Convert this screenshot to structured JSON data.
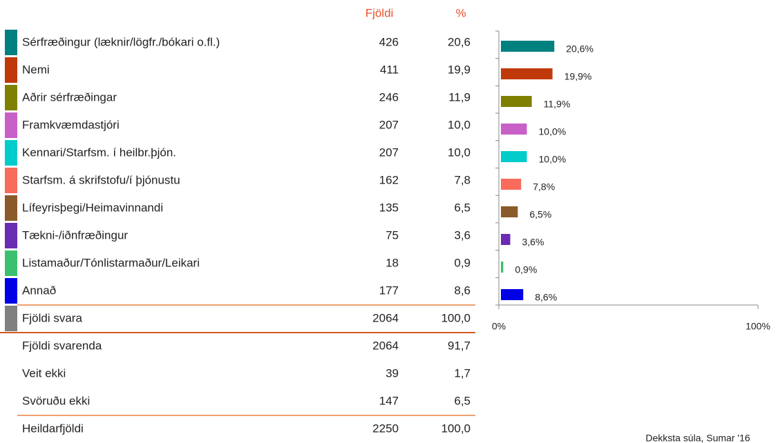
{
  "header": {
    "count": "Fjöldi",
    "percent": "%"
  },
  "table": {
    "rows": [
      {
        "label": "Sérfræðingur (læknir/lögfr./bókari o.fl.)",
        "count": 426,
        "percent": "20,6"
      },
      {
        "label": "Nemi",
        "count": 411,
        "percent": "19,9"
      },
      {
        "label": "Aðrir sérfræðingar",
        "count": 246,
        "percent": "11,9"
      },
      {
        "label": "Framkvæmdastjóri",
        "count": 207,
        "percent": "10,0"
      },
      {
        "label": "Kennari/Starfsm. í heilbr.þjón.",
        "count": 207,
        "percent": "10,0"
      },
      {
        "label": "Starfsm. á skrifstofu/í þjónustu",
        "count": 162,
        "percent": "7,8"
      },
      {
        "label": "Lífeyrisþegi/Heimavinnandi",
        "count": 135,
        "percent": "6,5"
      },
      {
        "label": "Tækni-/iðnfræðingur",
        "count": 75,
        "percent": "3,6"
      },
      {
        "label": "Listamaður/Tónlistarmaður/Leikari",
        "count": 18,
        "percent": "0,9"
      },
      {
        "label": "Annað",
        "count": 177,
        "percent": "8,6"
      }
    ],
    "summary": [
      {
        "label": "Fjöldi svara",
        "count": 2064,
        "percent": "100,0",
        "color": "#808080"
      },
      {
        "label": "Fjöldi svarenda",
        "count": 2064,
        "percent": "91,7"
      },
      {
        "label": "Veit ekki",
        "count": 39,
        "percent": "1,7"
      },
      {
        "label": "Svöruðu ekki",
        "count": 147,
        "percent": "6,5"
      },
      {
        "label": "Heildarfjöldi",
        "count": 2250,
        "percent": "100,0"
      }
    ]
  },
  "chart_data": {
    "type": "bar",
    "orientation": "horizontal",
    "values": [
      20.6,
      19.9,
      11.9,
      10.0,
      10.0,
      7.8,
      6.5,
      3.6,
      0.9,
      8.6
    ],
    "value_labels": [
      "20,6%",
      "19,9%",
      "11,9%",
      "10,0%",
      "10,0%",
      "7,8%",
      "6,5%",
      "3,6%",
      "0,9%",
      "8,6%"
    ],
    "colors": [
      "#00807f",
      "#c0390b",
      "#808000",
      "#c860c8",
      "#00cccc",
      "#f96b5b",
      "#8b5a2b",
      "#6a2cb0",
      "#3cc070",
      "#0000e6"
    ],
    "xlim": [
      0,
      100
    ],
    "xticks": [
      {
        "value": 0,
        "label": "0%"
      },
      {
        "value": 100,
        "label": "100%"
      }
    ]
  },
  "footnote": "Dekksta súla, Sumar '16"
}
